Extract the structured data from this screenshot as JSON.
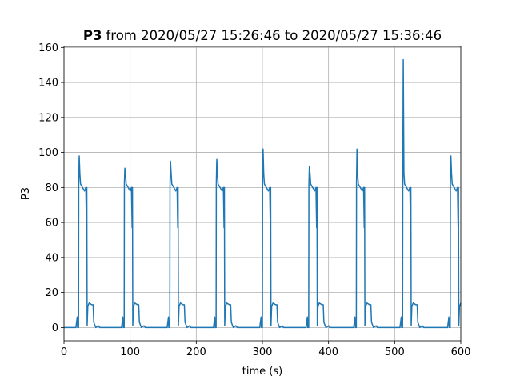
{
  "chart_data": {
    "type": "line",
    "title_parts": [
      "P3",
      "from 2020/05/27 15:26:46 to 2020/05/27 15:36:46"
    ],
    "xlabel": "time (s)",
    "ylabel": "P3",
    "color": "#1f77b4",
    "grid": true,
    "xlim": [
      0,
      600
    ],
    "ylim": [
      -7.6,
      160.6
    ],
    "xticks": [
      0,
      100,
      200,
      300,
      400,
      500,
      600
    ],
    "yticks": [
      0,
      20,
      40,
      60,
      80,
      100,
      120,
      140,
      160
    ],
    "x": [
      0,
      18,
      20,
      20.5,
      22,
      22.3,
      23,
      24,
      25,
      28,
      31,
      33,
      34,
      34.5,
      35,
      36,
      38,
      42,
      44,
      45,
      48,
      52,
      54,
      87,
      89,
      89.5,
      91,
      91.3,
      92,
      93,
      94,
      97,
      100,
      102,
      103,
      103.5,
      104,
      105,
      107,
      111,
      113,
      114,
      117,
      121,
      123,
      156,
      158,
      158.5,
      160,
      160.3,
      161,
      162,
      163,
      166,
      169,
      171,
      172,
      172.5,
      173,
      174,
      176,
      180,
      182,
      183,
      186,
      190,
      192,
      226,
      228,
      228.5,
      230,
      230.3,
      231,
      232,
      233,
      236,
      239,
      241,
      242,
      242.5,
      243,
      244,
      246,
      250,
      252,
      253,
      256,
      260,
      262,
      296,
      298,
      298.5,
      300,
      300.3,
      301,
      302,
      303,
      306,
      309,
      311,
      312,
      312.5,
      313,
      314,
      316,
      320,
      322,
      323,
      326,
      330,
      332,
      366,
      368,
      368.5,
      370,
      370.3,
      371,
      372,
      373,
      376,
      379,
      381,
      382,
      382.5,
      383,
      384,
      386,
      390,
      392,
      393,
      396,
      400,
      402,
      438,
      440,
      440.5,
      442,
      442.3,
      443,
      444,
      445,
      448,
      451,
      453,
      454,
      454.5,
      455,
      456,
      458,
      462,
      464,
      465,
      468,
      472,
      474,
      508,
      510,
      510.5,
      512,
      512.3,
      513,
      514,
      515,
      518,
      521,
      523,
      524,
      524.5,
      525,
      526,
      528,
      532,
      534,
      535,
      538,
      542,
      544,
      580,
      582,
      582.5,
      584,
      584.3,
      585,
      586,
      587,
      590,
      593,
      595,
      596,
      596.5,
      597,
      598,
      600
    ],
    "values": [
      0,
      0,
      6,
      0,
      0,
      82,
      98,
      88,
      82,
      80,
      78,
      80,
      57,
      80,
      1,
      12,
      14,
      13,
      13,
      3,
      0,
      1,
      0,
      0,
      6,
      0,
      0,
      82,
      91,
      88,
      82,
      80,
      78,
      80,
      57,
      80,
      1,
      12,
      14,
      13,
      13,
      3,
      0,
      1,
      0,
      0,
      6,
      0,
      0,
      82,
      95,
      88,
      82,
      80,
      78,
      80,
      57,
      80,
      1,
      12,
      14,
      13,
      13,
      3,
      0,
      1,
      0,
      0,
      6,
      0,
      0,
      82,
      96,
      88,
      82,
      80,
      78,
      80,
      57,
      80,
      1,
      12,
      14,
      13,
      13,
      3,
      0,
      1,
      0,
      0,
      6,
      0,
      0,
      82,
      102,
      88,
      82,
      80,
      78,
      80,
      57,
      80,
      1,
      12,
      14,
      13,
      13,
      3,
      0,
      1,
      0,
      0,
      6,
      0,
      0,
      82,
      92,
      88,
      82,
      80,
      78,
      80,
      57,
      80,
      1,
      12,
      14,
      13,
      13,
      3,
      0,
      1,
      0,
      0,
      6,
      0,
      0,
      82,
      102,
      88,
      82,
      80,
      78,
      80,
      57,
      80,
      1,
      12,
      14,
      13,
      13,
      3,
      0,
      1,
      0,
      0,
      6,
      0,
      0,
      82,
      153,
      88,
      82,
      80,
      78,
      80,
      57,
      80,
      1,
      12,
      14,
      13,
      13,
      3,
      0,
      1,
      0,
      0,
      6,
      0,
      0,
      82,
      98,
      88,
      82,
      80,
      78,
      80,
      57,
      80,
      1,
      12,
      14
    ]
  }
}
